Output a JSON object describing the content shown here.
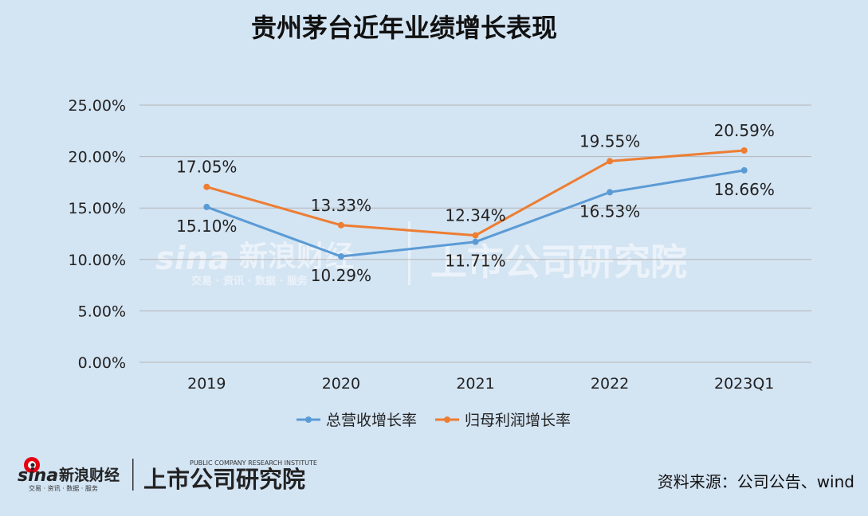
{
  "chart_data": {
    "type": "line",
    "title": "贵州茅台近年业绩增长表现",
    "categories": [
      "2019",
      "2020",
      "2021",
      "2022",
      "2023Q1"
    ],
    "ylim": [
      0,
      25
    ],
    "yticks": [
      "0.00%",
      "5.00%",
      "10.00%",
      "15.00%",
      "20.00%",
      "25.00%"
    ],
    "grid": true,
    "legend": "bottom",
    "series": [
      {
        "name": "总营收增长率",
        "color": "#5b9bd5",
        "values": [
          15.1,
          10.29,
          11.71,
          16.53,
          18.66
        ],
        "labels": [
          "15.10%",
          "10.29%",
          "11.71%",
          "16.53%",
          "18.66%"
        ]
      },
      {
        "name": "归母利润增长率",
        "color": "#ed7d31",
        "values": [
          17.05,
          13.33,
          12.34,
          19.55,
          20.59
        ],
        "labels": [
          "17.05%",
          "13.33%",
          "12.34%",
          "19.55%",
          "20.59%"
        ]
      }
    ]
  },
  "source": "资料来源：公司公告、wind",
  "watermark": {
    "sina": "sina",
    "sina_cn": "新浪财经",
    "sina_sub": "交易 · 资讯 · 数据 · 服务",
    "institute": "上市公司研究院"
  },
  "footer_logo": {
    "sina": "sina",
    "sina_cn": "新浪财经",
    "sina_sub": "交易 · 资讯 · 数据 · 服务",
    "institute": "上市公司研究院",
    "institute_en": "PUBLIC COMPANY RESEARCH INSTITUTE"
  },
  "colors": {
    "background": "#d3e4f3",
    "grid": "#b4b4b4"
  }
}
